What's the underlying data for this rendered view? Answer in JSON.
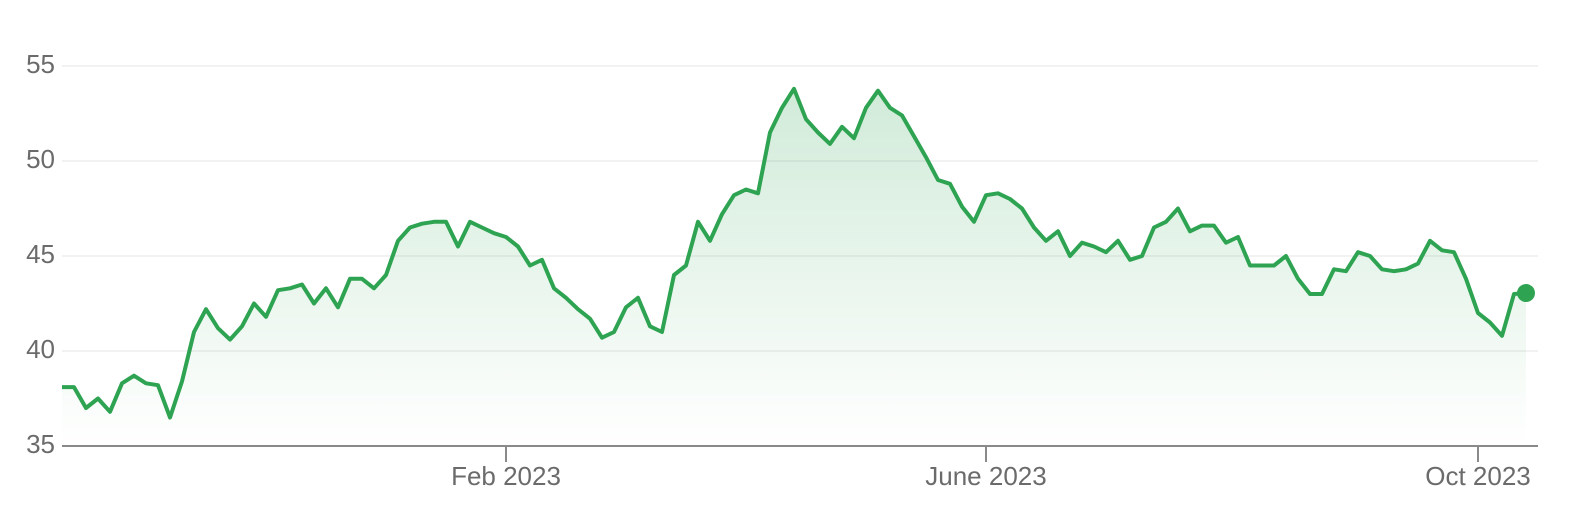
{
  "chart_data": {
    "type": "line",
    "categories": [
      null,
      null,
      null,
      null,
      null,
      null,
      null,
      null,
      null,
      null,
      null,
      null,
      null,
      null,
      null,
      null,
      null,
      null,
      null,
      null,
      null,
      null,
      null,
      null,
      null,
      null,
      null,
      null,
      null,
      null,
      null,
      null,
      null,
      null,
      null,
      null,
      null,
      "Feb 2023",
      null,
      null,
      null,
      null,
      null,
      null,
      null,
      null,
      null,
      null,
      null,
      null,
      null,
      null,
      null,
      null,
      null,
      null,
      null,
      null,
      null,
      null,
      null,
      null,
      null,
      null,
      null,
      null,
      null,
      null,
      null,
      null,
      null,
      null,
      null,
      null,
      null,
      null,
      null,
      "June 2023",
      null,
      null,
      null,
      null,
      null,
      null,
      null,
      null,
      null,
      null,
      null,
      null,
      null,
      null,
      null,
      null,
      null,
      null,
      null,
      null,
      null,
      null,
      null,
      null,
      null,
      null,
      null,
      null,
      null,
      null,
      null,
      null,
      null,
      null,
      null,
      null,
      null,
      null,
      null,
      null,
      "Oct 2023",
      null,
      null,
      null,
      null
    ],
    "values": [
      38.1,
      38.1,
      37.0,
      37.5,
      36.8,
      38.3,
      38.7,
      38.3,
      38.2,
      36.5,
      38.4,
      41.0,
      42.2,
      41.2,
      40.6,
      41.3,
      42.5,
      41.8,
      43.2,
      43.3,
      43.5,
      42.5,
      43.3,
      42.3,
      43.8,
      43.8,
      43.3,
      44.0,
      45.8,
      46.5,
      46.7,
      46.8,
      46.8,
      45.5,
      46.8,
      46.5,
      46.2,
      46.0,
      45.5,
      44.5,
      44.8,
      43.3,
      42.8,
      42.2,
      41.7,
      40.7,
      41.0,
      42.3,
      42.8,
      41.3,
      41.0,
      44.0,
      44.5,
      46.8,
      45.8,
      47.2,
      48.2,
      48.5,
      48.3,
      51.5,
      52.8,
      53.8,
      52.2,
      51.5,
      50.9,
      51.8,
      51.2,
      52.8,
      53.7,
      52.8,
      52.4,
      51.3,
      50.2,
      49.0,
      48.8,
      47.6,
      46.8,
      48.2,
      48.3,
      48.0,
      47.5,
      46.5,
      45.8,
      46.3,
      45.0,
      45.7,
      45.5,
      45.2,
      45.8,
      44.8,
      45.0,
      46.5,
      46.8,
      47.5,
      46.3,
      46.6,
      46.6,
      45.7,
      46.0,
      44.5,
      44.5,
      44.5,
      45.0,
      43.8,
      43.0,
      43.0,
      44.3,
      44.2,
      45.2,
      45.0,
      44.3,
      44.2,
      44.3,
      44.6,
      45.8,
      45.3,
      45.2,
      43.8,
      42.0,
      41.5,
      40.8,
      43.0,
      43.05
    ],
    "color": "#2ea452",
    "ylim": [
      35,
      55
    ],
    "yticks": [
      35,
      40,
      45,
      50,
      55
    ],
    "grid": true
  }
}
